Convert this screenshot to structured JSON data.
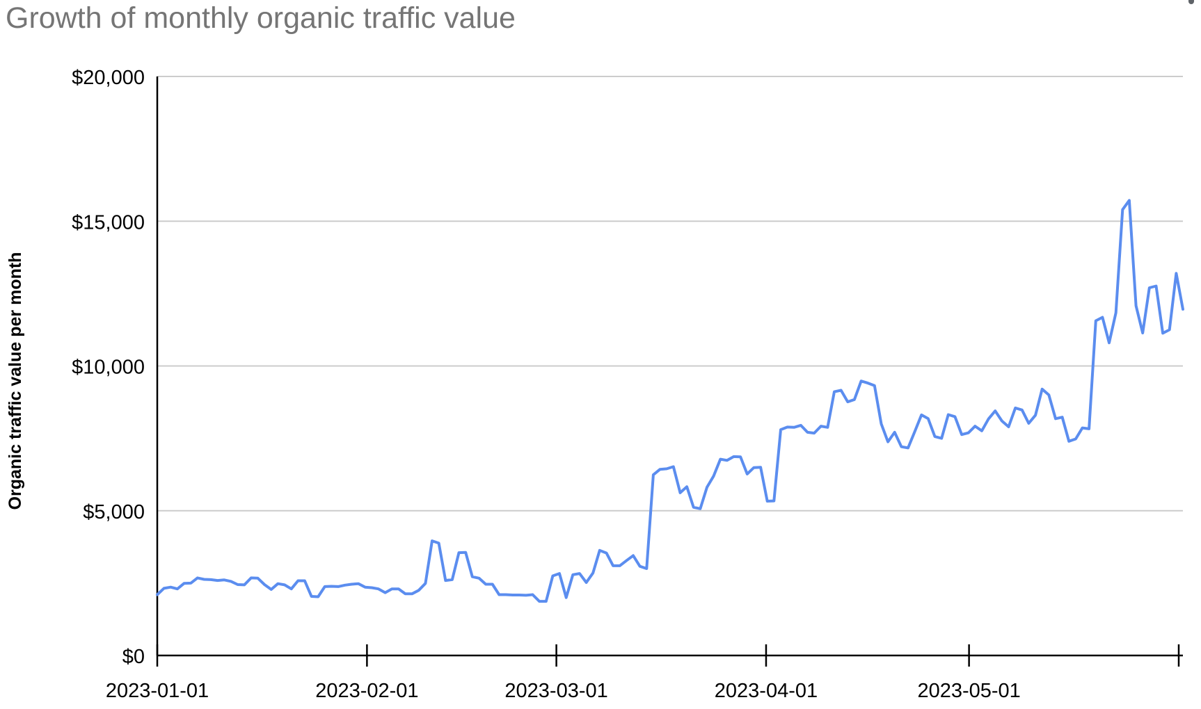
{
  "chart_data": {
    "type": "line",
    "title": "Growth of monthly organic traffic value",
    "xlabel": "",
    "ylabel": "Organic traffic value per month",
    "x_tick_labels": [
      "2023-01-01",
      "2023-02-01",
      "2023-03-01",
      "2023-04-01",
      "2023-05-01",
      ""
    ],
    "y_tick_labels": [
      "$0",
      "$5,000",
      "$10,000",
      "$15,000",
      "$20,000"
    ],
    "ylim": [
      0,
      20000
    ],
    "xlim": [
      "2023-01-01",
      "2023-06-01"
    ],
    "grid": true,
    "legend": "none",
    "line_color": "#5b8def",
    "series": [
      {
        "values": [
          2100,
          2320,
          2360,
          2300,
          2490,
          2500,
          2680,
          2630,
          2620,
          2590,
          2610,
          2560,
          2450,
          2440,
          2680,
          2670,
          2450,
          2280,
          2480,
          2440,
          2300,
          2580,
          2580,
          2040,
          2030,
          2380,
          2390,
          2380,
          2430,
          2460,
          2480,
          2360,
          2340,
          2300,
          2170,
          2300,
          2300,
          2130,
          2130,
          2250,
          2490,
          3960,
          3880,
          2590,
          2620,
          3550,
          3560,
          2720,
          2670,
          2460,
          2460,
          2100,
          2100,
          2090,
          2090,
          2080,
          2100,
          1870,
          1870,
          2750,
          2830,
          2000,
          2790,
          2830,
          2520,
          2850,
          3630,
          3540,
          3100,
          3100,
          3280,
          3450,
          3080,
          3000,
          6240,
          6430,
          6450,
          6520,
          5620,
          5830,
          5120,
          5070,
          5810,
          6200,
          6780,
          6740,
          6870,
          6860,
          6270,
          6490,
          6500,
          5330,
          5340,
          7800,
          7890,
          7880,
          7950,
          7710,
          7680,
          7920,
          7880,
          9110,
          9160,
          8760,
          8840,
          9480,
          9410,
          9320,
          8000,
          7380,
          7710,
          7210,
          7170,
          7730,
          8310,
          8180,
          7560,
          7500,
          8320,
          8250,
          7630,
          7690,
          7920,
          7760,
          8170,
          8450,
          8100,
          7900,
          8550,
          8480,
          8020,
          8300,
          9200,
          9000,
          8180,
          8230,
          7400,
          7480,
          7860,
          7830,
          11560,
          11680,
          10800,
          11840,
          15400,
          15720,
          12080,
          11140,
          12700,
          12760,
          11130,
          11250,
          13200,
          11960
        ]
      }
    ]
  }
}
